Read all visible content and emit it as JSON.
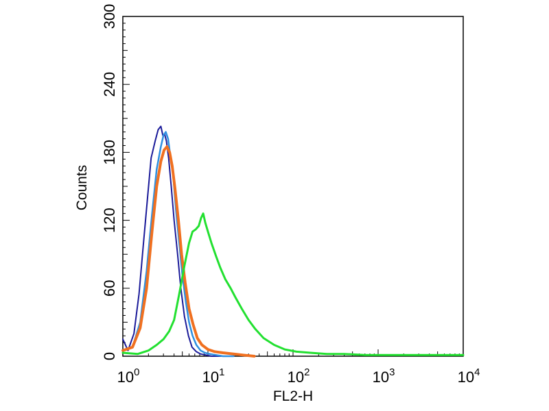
{
  "chart_data": {
    "type": "line",
    "title": "",
    "xlabel": "FL2-H",
    "ylabel": "Counts",
    "x_scale": "log",
    "xlim": [
      1,
      10000
    ],
    "ylim": [
      0,
      300
    ],
    "x_ticks": [
      {
        "value": 1,
        "base": "10",
        "exp": "0"
      },
      {
        "value": 10,
        "base": "10",
        "exp": "1"
      },
      {
        "value": 100,
        "base": "10",
        "exp": "2"
      },
      {
        "value": 1000,
        "base": "10",
        "exp": "3"
      },
      {
        "value": 10000,
        "base": "10",
        "exp": "4"
      }
    ],
    "y_ticks": [
      "0",
      "60",
      "120",
      "180",
      "240",
      "300"
    ],
    "grid": false,
    "legend": "none",
    "series": [
      {
        "color": "#1a1a99",
        "stroke_width": 2,
        "x": [
          1.0,
          1.15,
          1.35,
          1.55,
          1.75,
          1.95,
          2.15,
          2.4,
          2.6,
          2.8,
          2.95,
          3.1,
          3.25,
          3.45,
          3.7,
          4.0,
          4.4,
          4.8,
          5.3,
          5.9,
          6.5,
          7.3,
          8.2,
          9.5,
          11,
          13,
          16
        ],
        "y": [
          15,
          5,
          20,
          55,
          100,
          140,
          175,
          190,
          200,
          203,
          195,
          196,
          190,
          175,
          150,
          120,
          90,
          60,
          35,
          18,
          8,
          4,
          2,
          1,
          0,
          0,
          0
        ]
      },
      {
        "color": "#2e8fe0",
        "stroke_width": 2.5,
        "x": [
          1.0,
          1.3,
          1.6,
          1.9,
          2.2,
          2.5,
          2.8,
          3.0,
          3.2,
          3.4,
          3.6,
          3.9,
          4.2,
          4.6,
          5.0,
          5.5,
          6.0,
          6.6,
          7.3,
          8.2,
          9.2,
          10.5,
          12.5,
          15,
          20
        ],
        "y": [
          5,
          8,
          30,
          75,
          125,
          165,
          185,
          195,
          198,
          192,
          178,
          160,
          130,
          100,
          72,
          48,
          30,
          18,
          10,
          5,
          3,
          2,
          1,
          0,
          0
        ]
      },
      {
        "color": "#f07020",
        "stroke_width": 4,
        "x": [
          1.0,
          1.3,
          1.6,
          1.9,
          2.2,
          2.5,
          2.8,
          3.05,
          3.3,
          3.55,
          3.8,
          4.1,
          4.5,
          4.9,
          5.4,
          6.0,
          6.7,
          7.5,
          8.5,
          10,
          12,
          15,
          20,
          26,
          35
        ],
        "y": [
          5,
          8,
          25,
          60,
          110,
          150,
          172,
          182,
          185,
          180,
          168,
          148,
          120,
          90,
          65,
          42,
          28,
          16,
          10,
          6,
          4,
          3,
          2,
          1,
          0
        ]
      },
      {
        "color": "#22e030",
        "stroke_width": 3,
        "x": [
          1.0,
          1.5,
          2.0,
          2.5,
          3.0,
          3.5,
          4.0,
          4.6,
          5.3,
          6.0,
          6.6,
          7.2,
          7.8,
          8.3,
          8.8,
          9.3,
          10.0,
          11,
          12.5,
          14,
          16,
          18.5,
          21,
          25,
          30,
          36,
          45,
          60,
          80,
          110,
          160,
          250,
          400,
          700,
          1200,
          2500,
          5000,
          10000
        ],
        "y": [
          3,
          2,
          5,
          10,
          15,
          22,
          32,
          55,
          80,
          100,
          110,
          112,
          115,
          122,
          126,
          118,
          110,
          100,
          88,
          78,
          68,
          60,
          52,
          42,
          32,
          24,
          16,
          10,
          6,
          4,
          3,
          2,
          2,
          1,
          1,
          1,
          1,
          1
        ]
      }
    ]
  }
}
